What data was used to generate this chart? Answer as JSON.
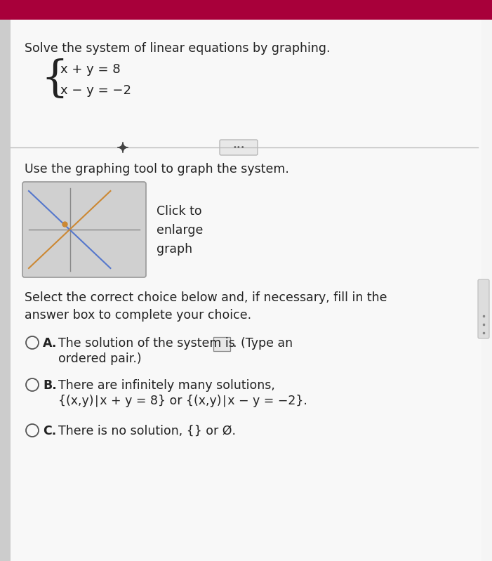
{
  "title": "Solve the system of linear equations by graphing.",
  "eq1": "x + y = 8",
  "eq2": "x − y = −2",
  "section1": "Use the graphing tool to graph the system.",
  "graph_click_to": "Click to",
  "graph_enlarge": "enlarge",
  "graph_graph": "graph",
  "section2_line1": "Select the correct choice below and, if necessary, fill in the",
  "section2_line2": "answer box to complete your choice.",
  "choice_a_line1": "The solution of the system is",
  "choice_a_suffix": ". (Type an",
  "choice_a_line2": "ordered pair.)",
  "choice_b_line1": "There are infinitely many solutions,",
  "choice_b_line2": "{(x,y)∣x + y = 8} or {(x,y)∣x − y = −2}.",
  "choice_c": "There is no solution, {} or Ø.",
  "white_bg": "#f5f5f5",
  "header_color": "#a8003a",
  "text_color": "#222222",
  "separator_color": "#bbbbbb",
  "graph_bg": "#d0d0d0",
  "line1_color": "#5577cc",
  "line2_color": "#cc8833",
  "dot_color": "#cc8833",
  "axis_color": "#888888",
  "circle_color": "#555555",
  "scrollbar_color": "#aaaaaa"
}
